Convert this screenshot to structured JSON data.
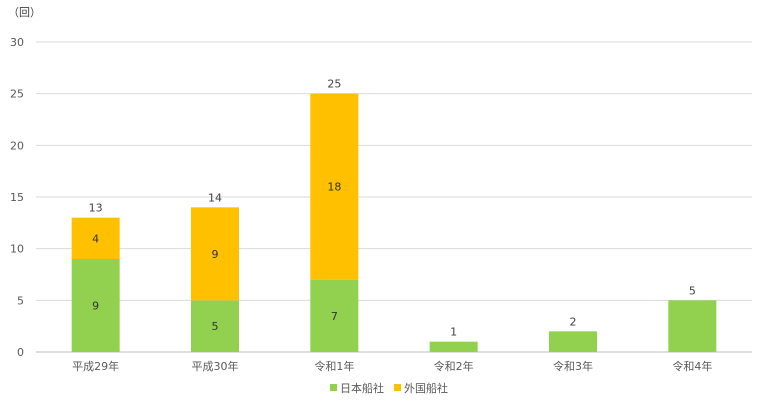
{
  "chart_data": {
    "type": "bar",
    "stacked": true,
    "unit_label": "（回）",
    "categories": [
      "平成29年",
      "平成30年",
      "令和1年",
      "令和2年",
      "令和3年",
      "令和4年"
    ],
    "series": [
      {
        "name": "日本船社",
        "color": "#92d050",
        "values": [
          9,
          5,
          7,
          1,
          2,
          5
        ]
      },
      {
        "name": "外国船社",
        "color": "#ffc000",
        "values": [
          4,
          9,
          18,
          0,
          0,
          0
        ]
      }
    ],
    "totals": [
      13,
      14,
      25,
      1,
      2,
      5
    ],
    "ylim": [
      0,
      30
    ],
    "yticks": [
      0,
      5,
      10,
      15,
      20,
      25,
      30
    ],
    "grid": true,
    "legend_position": "bottom"
  }
}
